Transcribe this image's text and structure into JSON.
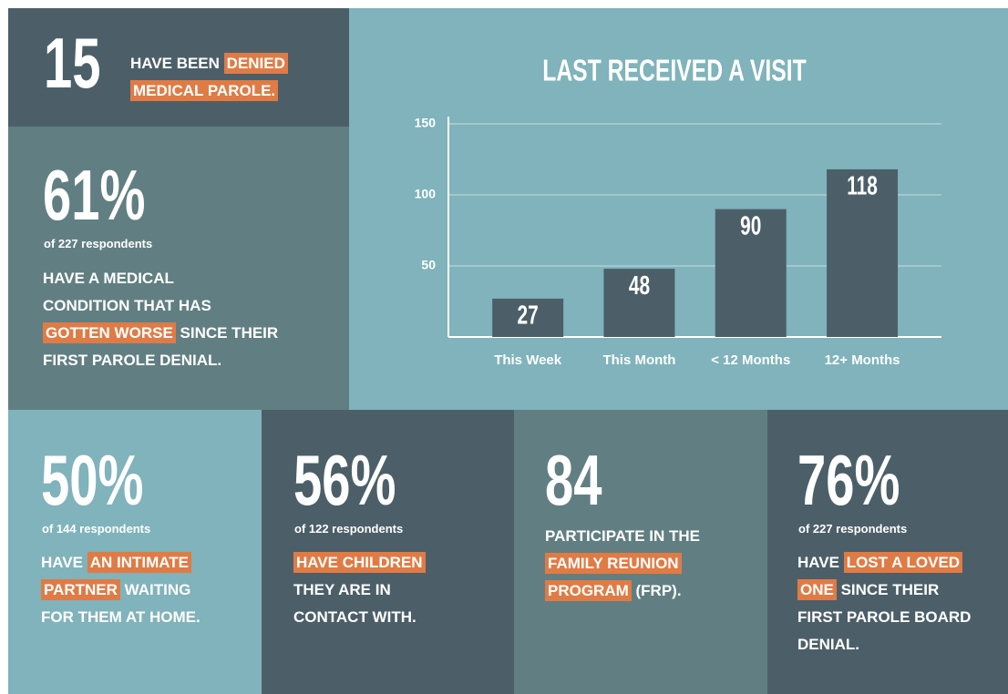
{
  "chart_data": {
    "type": "bar",
    "title": "LAST RECEIVED A VISIT",
    "categories": [
      "This Week",
      "This Month",
      "< 12 Months",
      "12+ Months"
    ],
    "values": [
      27,
      48,
      90,
      118
    ],
    "color": "#4c5f69",
    "ylim": [
      0,
      150
    ],
    "yticks": [
      50,
      100,
      150
    ],
    "grid": true
  },
  "stats": [
    {
      "number": "15",
      "lines": [
        [
          {
            "text": "HAVE BEEN "
          },
          {
            "text": "DENIED",
            "highlight": true
          }
        ],
        [
          {
            "text": "MEDICAL PAROLE.",
            "highlight": true
          }
        ]
      ]
    },
    {
      "number": "61%",
      "note": "of 227 respondents",
      "lines": [
        [
          {
            "text": "HAVE A MEDICAL"
          }
        ],
        [
          {
            "text": "CONDITION THAT HAS"
          }
        ],
        [
          {
            "text": "GOTTEN WORSE",
            "highlight": true
          },
          {
            "text": " SINCE THEIR"
          }
        ],
        [
          {
            "text": "FIRST PAROLE DENIAL."
          }
        ]
      ]
    },
    {
      "number": "50%",
      "note": "of 144 respondents",
      "lines": [
        [
          {
            "text": "HAVE "
          },
          {
            "text": "AN INTIMATE",
            "highlight": true
          }
        ],
        [
          {
            "text": "PARTNER",
            "highlight": true
          },
          {
            "text": " WAITING"
          }
        ],
        [
          {
            "text": "FOR THEM AT HOME."
          }
        ]
      ]
    },
    {
      "number": "56%",
      "note": "of 122 respondents",
      "lines": [
        [
          {
            "text": "HAVE CHILDREN",
            "highlight": true
          }
        ],
        [
          {
            "text": "THEY ARE IN"
          }
        ],
        [
          {
            "text": "CONTACT WITH."
          }
        ]
      ]
    },
    {
      "number": "84",
      "lines": [
        [
          {
            "text": "PARTICIPATE IN THE"
          }
        ],
        [
          {
            "text": "FAMILY REUNION",
            "highlight": true
          }
        ],
        [
          {
            "text": "PROGRAM",
            "highlight": true
          },
          {
            "text": " (FRP)."
          }
        ]
      ]
    },
    {
      "number": "76%",
      "note": "of 227 respondents",
      "lines": [
        [
          {
            "text": "HAVE "
          },
          {
            "text": "LOST A LOVED",
            "highlight": true
          }
        ],
        [
          {
            "text": "ONE",
            "highlight": true
          },
          {
            "text": " SINCE THEIR"
          }
        ],
        [
          {
            "text": "FIRST PAROLE BOARD"
          }
        ],
        [
          {
            "text": "DENIAL."
          }
        ]
      ]
    }
  ]
}
